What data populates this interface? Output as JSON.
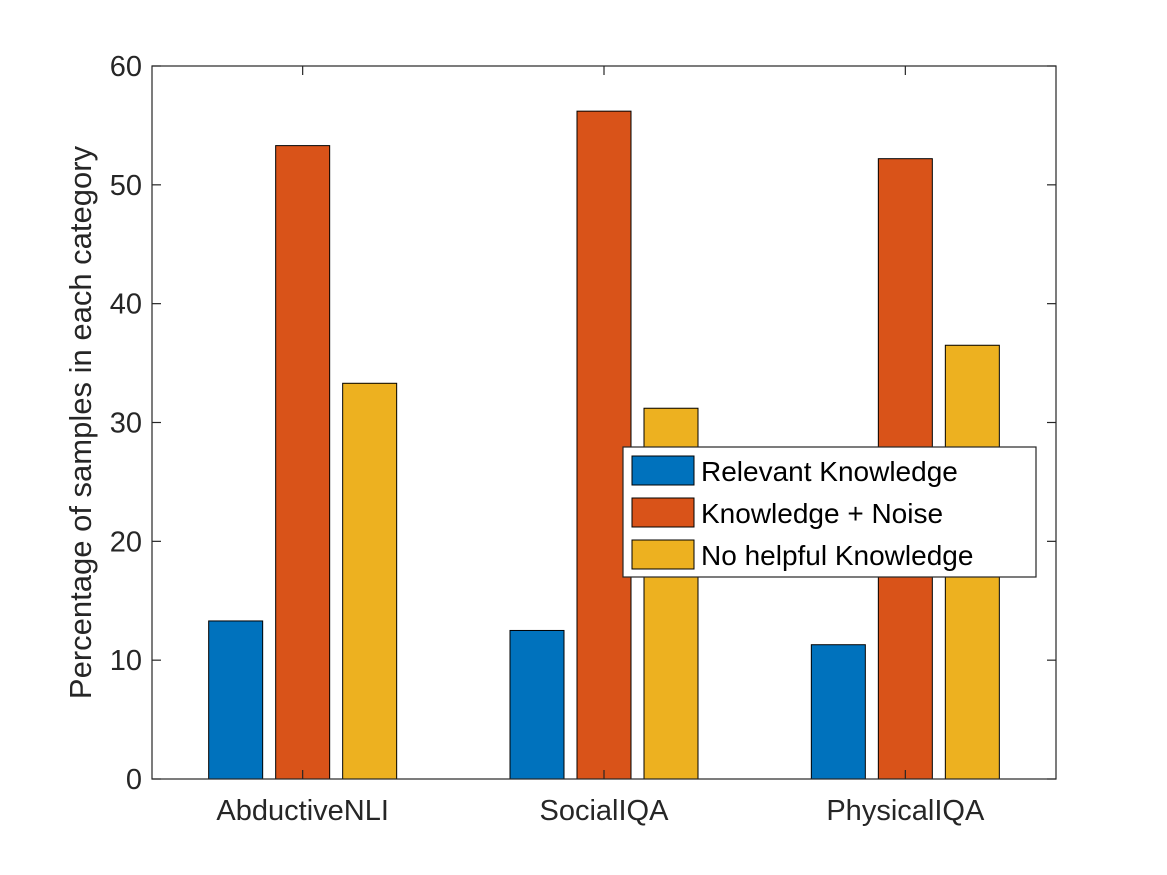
{
  "chart_data": {
    "type": "bar",
    "title": "",
    "xlabel": "",
    "ylabel": "Percentage of samples in each category",
    "categories": [
      "AbductiveNLI",
      "SocialIQA",
      "PhysicalIQA"
    ],
    "series": [
      {
        "name": "Relevant Knowledge",
        "color": "#0072BD",
        "values": [
          13.3,
          12.5,
          11.3
        ]
      },
      {
        "name": "Knowledge + Noise",
        "color": "#D95319",
        "values": [
          53.3,
          56.2,
          52.2
        ]
      },
      {
        "name": "No helpful Knowledge",
        "color": "#EDB120",
        "values": [
          33.3,
          31.2,
          36.5
        ]
      }
    ],
    "ylim": [
      0,
      60
    ],
    "yticks": [
      0,
      10,
      20,
      30,
      40,
      50,
      60
    ],
    "grid": false,
    "legend_position": "right"
  }
}
